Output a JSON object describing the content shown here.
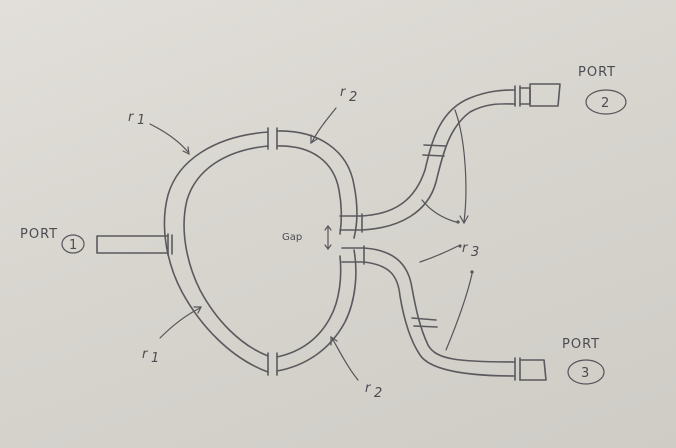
{
  "ports": [
    {
      "label": "PORT",
      "number": "1"
    },
    {
      "label": "PORT",
      "number": "2"
    },
    {
      "label": "PORT",
      "number": "3"
    }
  ],
  "radii": {
    "r1": "r",
    "r1_sub": "1",
    "r2": "r",
    "r2_sub": "2",
    "r3": "r",
    "r3_sub": "3"
  },
  "gap_label": "Gap",
  "colors": {
    "ink": "#5a5a5e",
    "paper": "#dcd9d4"
  }
}
